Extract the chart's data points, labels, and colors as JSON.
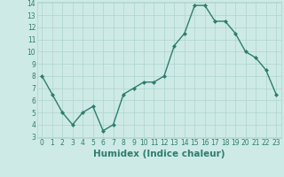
{
  "x": [
    0,
    1,
    2,
    3,
    4,
    5,
    6,
    7,
    8,
    9,
    10,
    11,
    12,
    13,
    14,
    15,
    16,
    17,
    18,
    19,
    20,
    21,
    22,
    23
  ],
  "y": [
    8.0,
    6.5,
    5.0,
    4.0,
    5.0,
    5.5,
    3.5,
    4.0,
    6.5,
    7.0,
    7.5,
    7.5,
    8.0,
    10.5,
    11.5,
    13.8,
    13.8,
    12.5,
    12.5,
    11.5,
    10.0,
    9.5,
    8.5,
    6.5
  ],
  "line_color": "#2d7d6e",
  "marker": "D",
  "marker_size": 2.0,
  "bg_color": "#ceeae6",
  "grid_color": "#aed4ce",
  "xlabel": "Humidex (Indice chaleur)",
  "ylim": [
    3,
    14
  ],
  "xlim": [
    -0.5,
    23.5
  ],
  "yticks": [
    3,
    4,
    5,
    6,
    7,
    8,
    9,
    10,
    11,
    12,
    13,
    14
  ],
  "xticks": [
    0,
    1,
    2,
    3,
    4,
    5,
    6,
    7,
    8,
    9,
    10,
    11,
    12,
    13,
    14,
    15,
    16,
    17,
    18,
    19,
    20,
    21,
    22,
    23
  ],
  "xtick_labels": [
    "0",
    "1",
    "2",
    "3",
    "4",
    "5",
    "6",
    "7",
    "8",
    "9",
    "10",
    "11",
    "12",
    "13",
    "14",
    "15",
    "16",
    "17",
    "18",
    "19",
    "20",
    "21",
    "22",
    "23"
  ],
  "tick_fontsize": 5.5,
  "xlabel_fontsize": 7.5,
  "linewidth": 1.0
}
